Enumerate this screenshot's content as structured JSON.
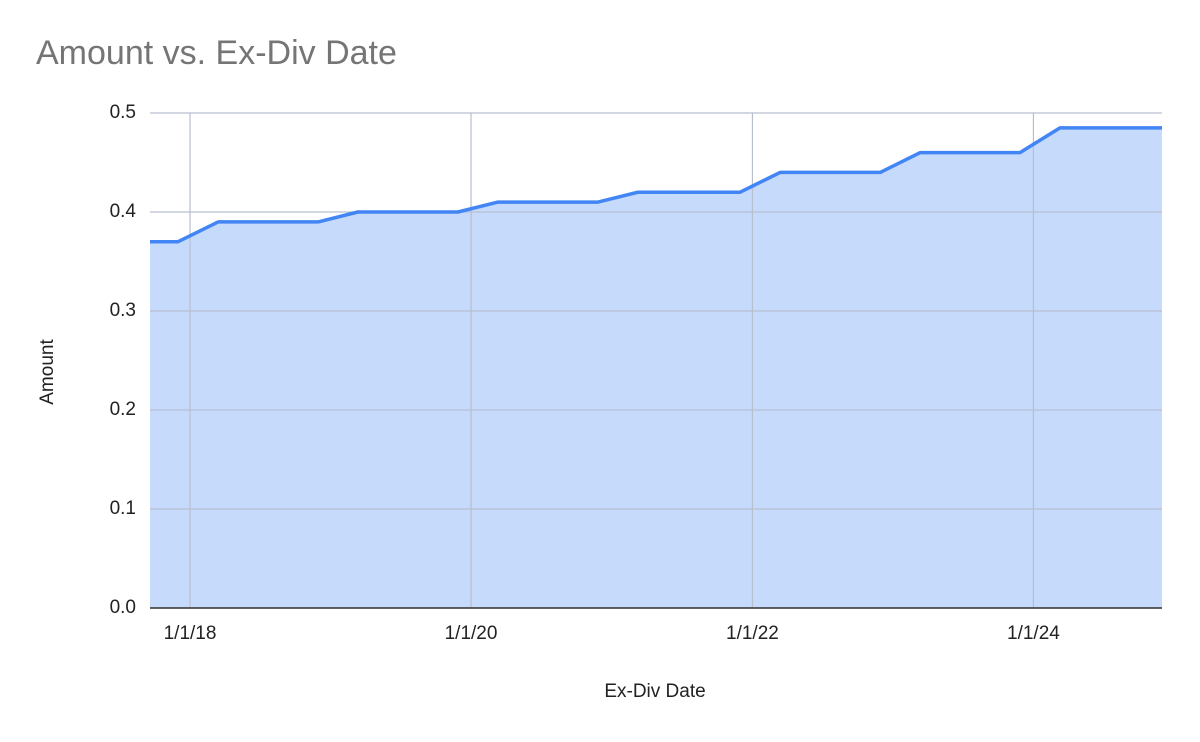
{
  "chart_data": {
    "type": "area",
    "title": "Amount vs. Ex-Div Date",
    "x_label": "Ex-Div Date",
    "y_label": "Amount",
    "x": [
      "2017-09-19",
      "2017-12-01",
      "2018-03-15",
      "2018-11-30",
      "2019-03-13",
      "2019-11-28",
      "2020-03-11",
      "2020-11-26",
      "2021-03-10",
      "2021-11-30",
      "2022-03-14",
      "2022-11-29",
      "2023-03-13",
      "2023-11-27",
      "2024-03-10",
      "2024-11-30"
    ],
    "values": [
      0.37,
      0.37,
      0.39,
      0.39,
      0.4,
      0.4,
      0.41,
      0.41,
      0.42,
      0.42,
      0.44,
      0.44,
      0.46,
      0.46,
      0.485,
      0.485
    ],
    "color": "#4285f4",
    "fill_color": "#c6dafc",
    "xlim": [
      "2017-09-19",
      "2024-11-30"
    ],
    "xticks": [
      {
        "value": "2018-01-01",
        "label": "1/1/18"
      },
      {
        "value": "2020-01-01",
        "label": "1/1/20"
      },
      {
        "value": "2022-01-01",
        "label": "1/1/22"
      },
      {
        "value": "2024-01-01",
        "label": "1/1/24"
      }
    ],
    "ylim": [
      0,
      0.5
    ],
    "yticks": [
      {
        "value": 0,
        "label": "0.0"
      },
      0.1,
      0.2,
      0.3,
      0.4,
      0.5
    ],
    "grid": true
  }
}
